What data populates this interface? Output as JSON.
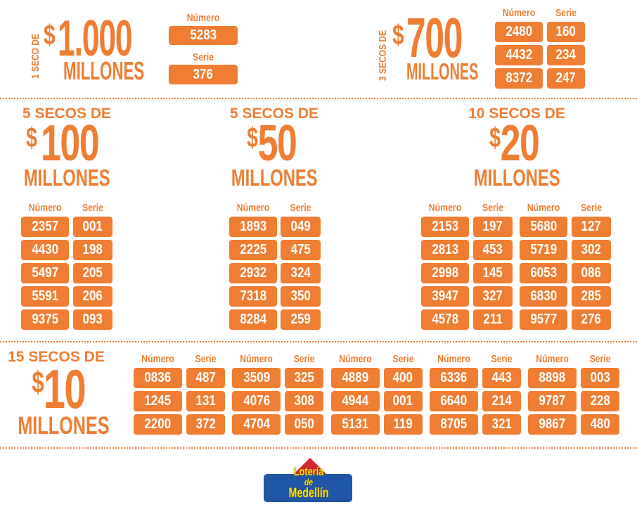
{
  "brand_color": "#ef7d32",
  "prizes": {
    "seco_1000": {
      "count_label": "1 SECO DE",
      "currency": "$",
      "amount": "1.000",
      "unit": "MILLONES",
      "numero_label": "Número",
      "serie_label": "Serie",
      "numero": "5283",
      "serie": "376"
    },
    "seco_700": {
      "count_label": "3 SECOS DE",
      "currency": "$",
      "amount": "700",
      "unit": "MILLONES",
      "headers": [
        "Número",
        "Serie"
      ],
      "rows": [
        [
          "2480",
          "160"
        ],
        [
          "4432",
          "234"
        ],
        [
          "8372",
          "247"
        ]
      ]
    },
    "seco_100": {
      "count_label": "5 SECOS DE",
      "currency": "$",
      "amount": "100",
      "unit": "MILLONES",
      "headers": [
        "Número",
        "Serie"
      ],
      "rows": [
        [
          "2357",
          "001"
        ],
        [
          "4430",
          "198"
        ],
        [
          "5497",
          "205"
        ],
        [
          "5591",
          "206"
        ],
        [
          "9375",
          "093"
        ]
      ]
    },
    "seco_50": {
      "count_label": "5 SECOS DE",
      "currency": "$",
      "amount": "50",
      "unit": "MILLONES",
      "headers": [
        "Número",
        "Serie"
      ],
      "rows": [
        [
          "1893",
          "049"
        ],
        [
          "2225",
          "475"
        ],
        [
          "2932",
          "324"
        ],
        [
          "7318",
          "350"
        ],
        [
          "8284",
          "259"
        ]
      ]
    },
    "seco_20": {
      "count_label": "10 SECOS DE",
      "currency": "$",
      "amount": "20",
      "unit": "MILLONES",
      "headers": [
        "Número",
        "Serie"
      ],
      "tables": [
        [
          [
            "2153",
            "197"
          ],
          [
            "2813",
            "453"
          ],
          [
            "2998",
            "145"
          ],
          [
            "3947",
            "327"
          ],
          [
            "4578",
            "211"
          ]
        ],
        [
          [
            "5680",
            "127"
          ],
          [
            "5719",
            "302"
          ],
          [
            "6053",
            "086"
          ],
          [
            "6830",
            "285"
          ],
          [
            "9577",
            "276"
          ]
        ]
      ]
    },
    "seco_10": {
      "count_label": "15 SECOS DE",
      "currency": "$",
      "amount": "10",
      "unit": "MILLONES",
      "headers": [
        "Número",
        "Serie"
      ],
      "tables": [
        [
          [
            "0836",
            "487"
          ],
          [
            "1245",
            "131"
          ],
          [
            "2200",
            "372"
          ]
        ],
        [
          [
            "3509",
            "325"
          ],
          [
            "4076",
            "308"
          ],
          [
            "4704",
            "050"
          ]
        ],
        [
          [
            "4889",
            "400"
          ],
          [
            "4944",
            "001"
          ],
          [
            "5131",
            "119"
          ]
        ],
        [
          [
            "6336",
            "443"
          ],
          [
            "6640",
            "214"
          ],
          [
            "8705",
            "321"
          ]
        ],
        [
          [
            "8898",
            "003"
          ],
          [
            "9787",
            "228"
          ],
          [
            "9867",
            "480"
          ]
        ]
      ]
    }
  },
  "logo": {
    "line1": "Lotería",
    "line2": "de",
    "line3": "Medellín",
    "colors": {
      "blue": "#1f56a6",
      "red": "#d6262f",
      "yellow": "#f6e20e"
    }
  }
}
